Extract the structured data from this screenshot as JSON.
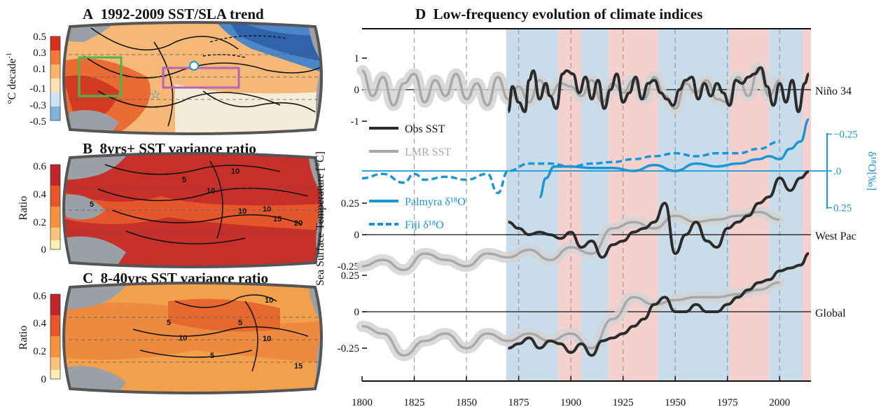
{
  "panel_a": {
    "letter": "A",
    "title": "1992-2009 SST/SLA trend",
    "cbar_label": "°C decade",
    "cbar_label_sup": "-1",
    "cbar_ticks": [
      "0.5",
      "0.3",
      "0.1",
      "-0.1",
      "-0.3",
      "-0.5"
    ],
    "cbar_colors": [
      "#d62e1f",
      "#f07a3a",
      "#f7b46a",
      "#fbe0b0",
      "#cde3f2",
      "#7fb4db",
      "#3a7bbf"
    ]
  },
  "panel_b": {
    "letter": "B",
    "title": "8yrs+ SST variance ratio",
    "cbar_label": "Ratio",
    "cbar_ticks": [
      "0.6",
      "0.4",
      "0.2",
      "0"
    ],
    "contour_labels": [
      "10",
      "5",
      "10",
      "5",
      "10",
      "10",
      "15",
      "20"
    ]
  },
  "panel_c": {
    "letter": "C",
    "title": "8-40yrs SST variance ratio",
    "cbar_label": "Ratio",
    "cbar_ticks": [
      "0.6",
      "0.4",
      "0.2",
      "0"
    ],
    "contour_labels": [
      "10",
      "5",
      "5",
      "10",
      "10",
      "5",
      "15"
    ]
  },
  "panel_d": {
    "letter": "D",
    "title": "Low-frequency evolution of climate indices",
    "ylabel": "Sea Surface Temperature [°C]",
    "ylabel_right": "δ¹⁸O[‰]",
    "colors": {
      "obs": "#2b2b2b",
      "lmr": "#a8a8a8",
      "band": "#d3d3d3",
      "coral": "#1a96d4",
      "blue_shade": "#c9dcea",
      "red_shade": "#f4d0cf"
    },
    "legend": {
      "obs": "Obs SST",
      "lmr": "LMR SST",
      "palmyra": "Palmyra δ¹⁸O",
      "fiji": "Fiji δ¹⁸O"
    },
    "region_labels": {
      "nino": "Niño 34",
      "westpac": "West Pac",
      "global": "Global"
    }
  },
  "chart_data": {
    "type": "line",
    "title": "Low-frequency evolution of climate indices",
    "xlabel": "",
    "ylabel": "Sea Surface Temperature [°C]",
    "xlim": [
      1800,
      2015
    ],
    "x_ticks": [
      1800,
      1825,
      1850,
      1875,
      1900,
      1925,
      1950,
      1975,
      2000
    ],
    "dashed_vlines": [
      1825,
      1850,
      1875,
      1900,
      1925,
      1950,
      1975,
      2000
    ],
    "shaded_periods": [
      {
        "start": 1869,
        "end": 1894,
        "color": "blue"
      },
      {
        "start": 1894,
        "end": 1905,
        "color": "red"
      },
      {
        "start": 1905,
        "end": 1918,
        "color": "blue"
      },
      {
        "start": 1918,
        "end": 1942,
        "color": "red"
      },
      {
        "start": 1942,
        "end": 1976,
        "color": "blue"
      },
      {
        "start": 1976,
        "end": 1995,
        "color": "red"
      },
      {
        "start": 1995,
        "end": 2011,
        "color": "blue"
      },
      {
        "start": 2011,
        "end": 2015,
        "color": "red"
      }
    ],
    "panels": [
      {
        "name": "Niño 34",
        "yticks": [
          -1,
          0,
          1
        ],
        "series": [
          {
            "name": "LMR SST",
            "x": [
              1800,
              1805,
              1810,
              1815,
              1820,
              1825,
              1830,
              1835,
              1840,
              1845,
              1850,
              1855,
              1860,
              1865,
              1870,
              1875,
              1880,
              1885,
              1890,
              1895,
              1900,
              1905,
              1910,
              1915,
              1920,
              1925,
              1930,
              1935,
              1940,
              1945,
              1950,
              1955,
              1960,
              1965,
              1970,
              1975,
              1980,
              1985,
              1990,
              1995,
              2000
            ],
            "y": [
              0.6,
              -0.2,
              0.4,
              -0.5,
              0.2,
              0.5,
              -0.4,
              0.3,
              -0.2,
              0.5,
              -0.3,
              0.2,
              -0.5,
              0.4,
              -0.3,
              0.1,
              -0.4,
              0.3,
              -0.2,
              0.2,
              0.1,
              -0.2,
              0.3,
              -0.4,
              0.2,
              -0.1,
              0.3,
              -0.3,
              0.4,
              -0.2,
              -0.6,
              0.2,
              -0.1,
              0.3,
              -0.3,
              -0.4,
              0.4,
              -0.2,
              0.7,
              -0.2,
              0.3
            ]
          },
          {
            "name": "Obs SST",
            "x": [
              1870,
              1872,
              1875,
              1878,
              1880,
              1882,
              1885,
              1888,
              1890,
              1893,
              1896,
              1898,
              1901,
              1904,
              1907,
              1910,
              1913,
              1916,
              1919,
              1922,
              1925,
              1928,
              1931,
              1934,
              1937,
              1940,
              1943,
              1946,
              1949,
              1952,
              1955,
              1958,
              1961,
              1964,
              1967,
              1970,
              1973,
              1976,
              1979,
              1982,
              1985,
              1988,
              1991,
              1994,
              1997,
              2000,
              2003,
              2006,
              2009,
              2012,
              2014
            ],
            "y": [
              -0.7,
              0.1,
              -0.4,
              -0.7,
              0.3,
              0.6,
              -0.3,
              0.2,
              -0.2,
              -0.6,
              0.5,
              0.6,
              0.5,
              -0.1,
              0.4,
              -0.3,
              0.3,
              -0.6,
              0.0,
              0.5,
              -0.4,
              -0.1,
              0.4,
              -0.3,
              0.2,
              0.3,
              -0.1,
              -0.3,
              -0.5,
              0.0,
              0.3,
              0.4,
              -0.3,
              0.2,
              -0.2,
              0.2,
              -0.1,
              -0.5,
              0.3,
              0.2,
              0.4,
              0.5,
              0.7,
              0.1,
              -0.5,
              0.2,
              -0.4,
              0.3,
              -0.7,
              0.2,
              0.5
            ]
          }
        ]
      },
      {
        "name": "West Pac",
        "yticks": [
          -0.25,
          0,
          0.25
        ],
        "series": [
          {
            "name": "LMR SST",
            "x": [
              1800,
              1810,
              1820,
              1830,
              1840,
              1850,
              1860,
              1870,
              1880,
              1890,
              1900,
              1910,
              1920,
              1930,
              1940,
              1950,
              1960,
              1970,
              1980,
              1990,
              2000
            ],
            "y": [
              -0.25,
              -0.2,
              -0.28,
              -0.15,
              -0.2,
              -0.25,
              -0.15,
              -0.18,
              -0.12,
              -0.2,
              -0.1,
              -0.15,
              0.05,
              0.1,
              0.05,
              0.15,
              0.1,
              0.12,
              0.15,
              0.18,
              0.12
            ]
          },
          {
            "name": "Obs SST",
            "x": [
              1870,
              1875,
              1880,
              1885,
              1890,
              1895,
              1900,
              1905,
              1910,
              1915,
              1920,
              1925,
              1930,
              1935,
              1940,
              1945,
              1950,
              1955,
              1960,
              1965,
              1970,
              1975,
              1980,
              1985,
              1990,
              1995,
              2000,
              2005,
              2010,
              2014
            ],
            "y": [
              0.1,
              0.05,
              0.0,
              0.02,
              0.0,
              -0.03,
              0.02,
              -0.1,
              -0.05,
              -0.18,
              -0.08,
              -0.05,
              0.02,
              0.05,
              0.1,
              0.25,
              -0.15,
              0.0,
              0.1,
              -0.05,
              -0.1,
              0.05,
              0.1,
              0.15,
              0.25,
              0.3,
              0.45,
              0.35,
              0.45,
              0.5
            ]
          }
        ]
      },
      {
        "name": "Global",
        "yticks": [
          -0.25,
          0,
          0.25
        ],
        "series": [
          {
            "name": "LMR SST",
            "x": [
              1800,
              1810,
              1820,
              1830,
              1840,
              1850,
              1860,
              1870,
              1880,
              1890,
              1900,
              1910,
              1920,
              1930,
              1940,
              1950,
              1960,
              1970,
              1980,
              1990,
              2000
            ],
            "y": [
              -0.1,
              -0.15,
              -0.3,
              -0.2,
              -0.15,
              -0.25,
              -0.15,
              -0.2,
              -0.15,
              -0.2,
              -0.15,
              -0.25,
              -0.05,
              0.1,
              0.05,
              0.08,
              0.1,
              0.1,
              0.12,
              0.15,
              0.2
            ]
          },
          {
            "name": "Obs SST",
            "x": [
              1870,
              1875,
              1880,
              1885,
              1890,
              1895,
              1900,
              1905,
              1910,
              1915,
              1920,
              1925,
              1930,
              1935,
              1940,
              1945,
              1950,
              1955,
              1960,
              1965,
              1970,
              1975,
              1980,
              1985,
              1990,
              1995,
              2000,
              2005,
              2010,
              2014
            ],
            "y": [
              -0.25,
              -0.22,
              -0.18,
              -0.25,
              -0.2,
              -0.22,
              -0.28,
              -0.22,
              -0.3,
              -0.2,
              -0.18,
              -0.15,
              -0.1,
              -0.05,
              0.05,
              0.1,
              0.0,
              0.0,
              0.05,
              0.0,
              0.0,
              0.05,
              0.1,
              0.15,
              0.2,
              0.22,
              0.28,
              0.3,
              0.32,
              0.4
            ]
          }
        ]
      },
      {
        "name": "δ18O",
        "yticks": [
          -0.25,
          0,
          0.25
        ],
        "series": [
          {
            "name": "Palmyra δ18O",
            "x": [
              1885,
              1888,
              1892,
              1900,
              1910,
              1920,
              1930,
              1940,
              1950,
              1960,
              1970,
              1980,
              1990,
              1995,
              2000,
              2005,
              2010,
              2014
            ],
            "y": [
              0.18,
              0.05,
              -0.03,
              -0.03,
              -0.02,
              -0.02,
              0.0,
              -0.04,
              0.0,
              -0.05,
              -0.03,
              -0.05,
              -0.08,
              -0.1,
              -0.08,
              -0.15,
              -0.2,
              -0.35
            ]
          },
          {
            "name": "Fiji δ18O",
            "x": [
              1800,
              1810,
              1820,
              1825,
              1830,
              1840,
              1850,
              1860,
              1865,
              1870,
              1880,
              1890,
              1900,
              1910,
              1920,
              1930,
              1940,
              1950,
              1960,
              1970,
              1980,
              1990,
              2000
            ],
            "y": [
              0.05,
              0.02,
              0.08,
              0.02,
              0.06,
              0.04,
              0.06,
              0.02,
              0.15,
              0.0,
              -0.05,
              -0.05,
              -0.03,
              -0.05,
              -0.06,
              -0.08,
              -0.1,
              -0.12,
              -0.1,
              -0.12,
              -0.12,
              -0.15,
              -0.2
            ]
          }
        ]
      }
    ]
  }
}
